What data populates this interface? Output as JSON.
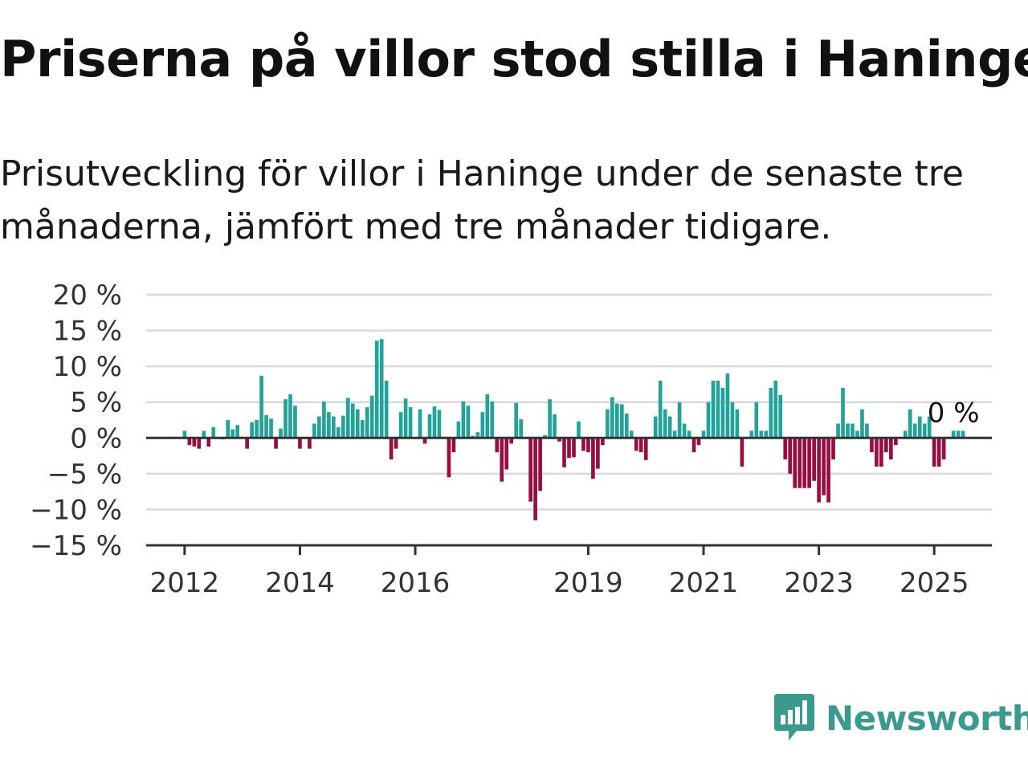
{
  "title": "Priserna på villor stod stilla i Haninge",
  "subtitle": "Prisutveckling för villor i Haninge under de senaste tre månaderna, jämfört med tre månader tidigare.",
  "colors": {
    "positive": "#22a39a",
    "negative": "#9b0c3f",
    "grid": "#d9d9d9",
    "axis": "#333333",
    "logo": "#3a9a8e"
  },
  "brand": {
    "name": "Newsworthy",
    "icon": "bar-chart-speech-bubble-icon"
  },
  "chart_data": {
    "type": "bar",
    "title": "",
    "xlabel": "",
    "ylabel": "",
    "y_tick_labels": [
      "20 %",
      "15 %",
      "10 %",
      "5 %",
      "0 %",
      "−5 %",
      "−10 %",
      "−15 %"
    ],
    "y_ticks": [
      20,
      15,
      10,
      5,
      0,
      -5,
      -10,
      -15
    ],
    "ylim": [
      -15,
      20
    ],
    "x_tick_labels": [
      "2012",
      "2014",
      "2016",
      "2019",
      "2021",
      "2023",
      "2025"
    ],
    "x_ticks": [
      "2012-01",
      "2014-01",
      "2016-01",
      "2019-01",
      "2021-01",
      "2023-01",
      "2025-01"
    ],
    "xlim": [
      "2011-05",
      "2026-01"
    ],
    "grid": true,
    "annotation": {
      "text": "0 %",
      "x": "2025-05",
      "y": 0
    },
    "series": [
      {
        "start": "2012-01",
        "frequency": "monthly",
        "values": [
          1.0,
          -1.0,
          -1.2,
          -1.5,
          1.0,
          -1.2,
          1.5,
          0,
          -0.2,
          2.5,
          1.2,
          1.8,
          0,
          -1.5,
          2.2,
          2.5,
          8.7,
          3.2,
          2.7,
          -1.5,
          1.3,
          5.4,
          6.1,
          4.5,
          -1.5,
          0,
          -1.5,
          2.0,
          3.0,
          5.1,
          3.6,
          3.0,
          1.5,
          3.1,
          5.6,
          4.8,
          4.0,
          2.5,
          4.3,
          5.9,
          13.6,
          13.8,
          8.0,
          -3.0,
          -1.5,
          3.6,
          5.5,
          4.3,
          0,
          4.0,
          -0.8,
          3.3,
          4.4,
          3.9,
          0,
          -5.5,
          -2.0,
          2.3,
          5.1,
          4.5,
          0.3,
          0.8,
          3.6,
          6.1,
          5.1,
          -2.0,
          -6.1,
          -4.4,
          -0.8,
          4.9,
          2.6,
          0,
          -8.9,
          -11.5,
          -7.4,
          0.4,
          5.4,
          3.3,
          -0.5,
          -4.1,
          -2.8,
          -2.7,
          2.3,
          -1.8,
          -2.0,
          -5.7,
          -4.3,
          -1.0,
          4.0,
          5.7,
          4.8,
          4.7,
          3.4,
          1.0,
          -1.8,
          -2.0,
          -3.1,
          0,
          3.0,
          8.0,
          4.0,
          3.0,
          1.0,
          5.0,
          2.0,
          1.0,
          -2.0,
          -1.0,
          1.0,
          5.0,
          8.0,
          8.0,
          7.0,
          9.0,
          5.0,
          4.0,
          -4.0,
          0,
          1.0,
          5.0,
          1.0,
          1.0,
          7.0,
          8.0,
          6.0,
          -3.0,
          -5.0,
          -7.0,
          -7.0,
          -7.0,
          -7.0,
          -6.0,
          -9.0,
          -8.0,
          -9.0,
          -3.0,
          2.0,
          7.0,
          2.0,
          2.0,
          1.0,
          4.0,
          2.0,
          -2.0,
          -4.0,
          -4.0,
          -2.0,
          -3.0,
          -1.0,
          0,
          1.0,
          4.0,
          2.0,
          3.0,
          2.0,
          3.0,
          -4.0,
          -4.0,
          -3.0,
          0,
          1.0,
          1.0,
          1.0
        ]
      }
    ]
  }
}
